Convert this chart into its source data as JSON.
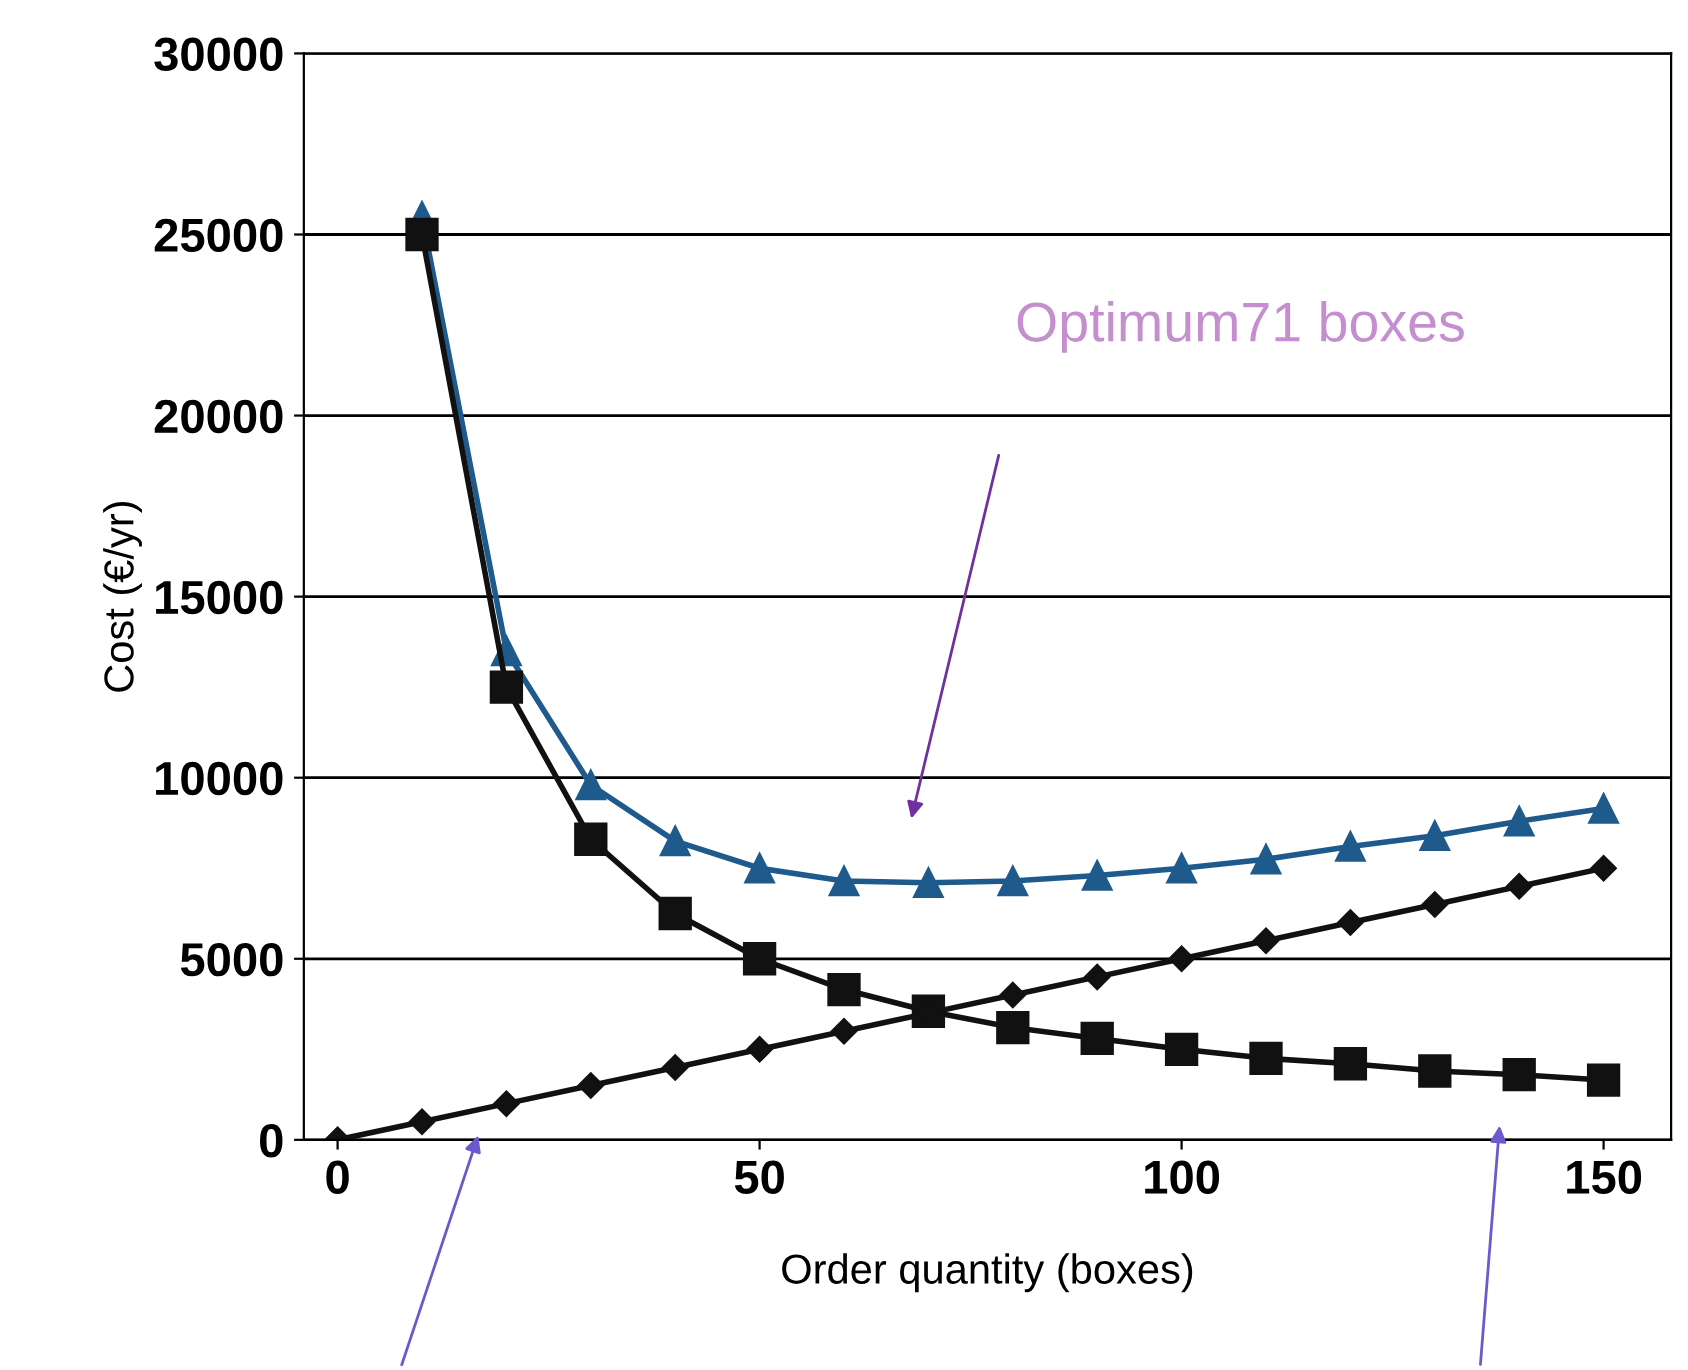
{
  "chart_data": {
    "type": "line",
    "xlabel": "Order quantity (boxes)",
    "ylabel": "Cost (€/yr)",
    "x": [
      0,
      10,
      20,
      30,
      40,
      50,
      60,
      70,
      80,
      90,
      100,
      110,
      120,
      130,
      140,
      150
    ],
    "series": [
      {
        "color": "#1f5a8c",
        "marker": "triangle",
        "x": [
          10,
          20,
          30,
          40,
          50,
          60,
          70,
          80,
          90,
          100,
          110,
          120,
          130,
          140,
          150
        ],
        "values": [
          25500,
          13500,
          9800,
          8250,
          7500,
          7150,
          7100,
          7150,
          7300,
          7500,
          7750,
          8100,
          8400,
          8800,
          9150
        ]
      },
      {
        "color": "#111111",
        "marker": "square",
        "x": [
          10,
          20,
          30,
          40,
          50,
          60,
          70,
          80,
          90,
          100,
          110,
          120,
          130,
          140,
          150
        ],
        "values": [
          25000,
          12500,
          8300,
          6250,
          5000,
          4150,
          3550,
          3100,
          2800,
          2500,
          2250,
          2100,
          1900,
          1800,
          1650
        ]
      },
      {
        "color": "#111111",
        "marker": "diamond",
        "values": [
          0,
          500,
          1000,
          1500,
          2000,
          2500,
          3000,
          3500,
          4000,
          4500,
          5000,
          5500,
          6000,
          6500,
          7000,
          7500
        ]
      }
    ],
    "xlim": [
      -4,
      158
    ],
    "ylim": [
      0,
      30000
    ],
    "xticks": [
      0,
      50,
      100,
      150
    ],
    "yticks": [
      0,
      5000,
      10000,
      15000,
      20000,
      25000,
      30000
    ],
    "grid": "y",
    "legend": false,
    "annotations": [
      "Optimum71 boxes"
    ]
  }
}
